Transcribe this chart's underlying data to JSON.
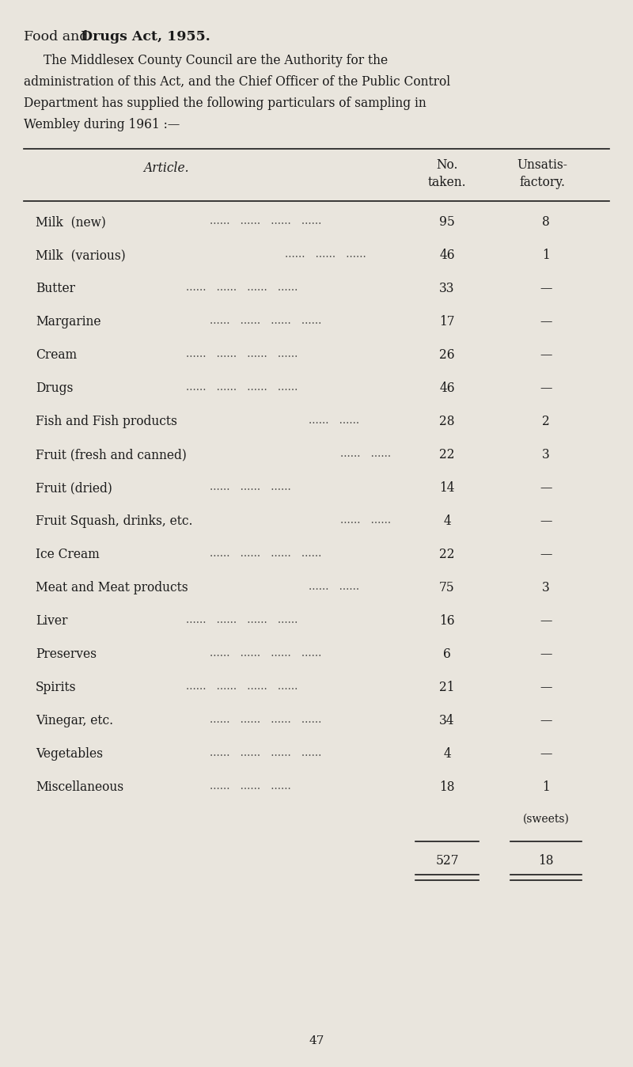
{
  "title_normal": "Food and ",
  "title_bold": "Drugs Act, 1955.",
  "intro_lines": [
    "The Middlesex County Council are the Authority for the",
    "administration of this Act, and the Chief Officer of the Public Control",
    "Department has supplied the following particulars of sampling in",
    "Wembley during 1961 :—"
  ],
  "col_header_article": "Article.",
  "col_header_no1": "No.",
  "col_header_no2": "taken.",
  "col_header_unsatis1": "Unsatis-",
  "col_header_unsatis2": "factory.",
  "rows": [
    {
      "article": "Milk  (new)",
      "dot_groups": 4,
      "no_taken": "95",
      "unsatis": "8"
    },
    {
      "article": "Milk  (various)",
      "dot_groups": 3,
      "no_taken": "46",
      "unsatis": "1"
    },
    {
      "article": "Butter",
      "dot_groups": 4,
      "no_taken": "33",
      "unsatis": "—"
    },
    {
      "article": "Margarine",
      "dot_groups": 4,
      "no_taken": "17",
      "unsatis": "—"
    },
    {
      "article": "Cream",
      "dot_groups": 4,
      "no_taken": "26",
      "unsatis": "—"
    },
    {
      "article": "Drugs",
      "dot_groups": 4,
      "no_taken": "46",
      "unsatis": "—"
    },
    {
      "article": "Fish and Fish products",
      "dot_groups": 2,
      "no_taken": "28",
      "unsatis": "2"
    },
    {
      "article": "Fruit (fresh and canned)",
      "dot_groups": 2,
      "no_taken": "22",
      "unsatis": "3"
    },
    {
      "article": "Fruit (dried)",
      "dot_groups": 3,
      "no_taken": "14",
      "unsatis": "—"
    },
    {
      "article": "Fruit Squash, drinks, etc.",
      "dot_groups": 2,
      "no_taken": "4",
      "unsatis": "—"
    },
    {
      "article": "Ice Cream",
      "dot_groups": 4,
      "no_taken": "22",
      "unsatis": "—"
    },
    {
      "article": "Meat and Meat products",
      "dot_groups": 2,
      "no_taken": "75",
      "unsatis": "3"
    },
    {
      "article": "Liver",
      "dot_groups": 4,
      "no_taken": "16",
      "unsatis": "—"
    },
    {
      "article": "Preserves",
      "dot_groups": 4,
      "no_taken": "6",
      "unsatis": "—"
    },
    {
      "article": "Spirits",
      "dot_groups": 4,
      "no_taken": "21",
      "unsatis": "—"
    },
    {
      "article": "Vinegar, etc.",
      "dot_groups": 4,
      "no_taken": "34",
      "unsatis": "—"
    },
    {
      "article": "Vegetables",
      "dot_groups": 4,
      "no_taken": "4",
      "unsatis": "—"
    },
    {
      "article": "Miscellaneous",
      "dot_groups": 3,
      "no_taken": "18",
      "unsatis": "1"
    }
  ],
  "sweets_note": "(sweets)",
  "total_no": "527",
  "total_unsatis": "18",
  "page_number": "47",
  "bg_color": "#e9e5dd",
  "text_color": "#1a1a1a",
  "font_size_title": 12.5,
  "font_size_body": 11.2,
  "font_size_small": 10.0,
  "font_size_page": 11.0
}
